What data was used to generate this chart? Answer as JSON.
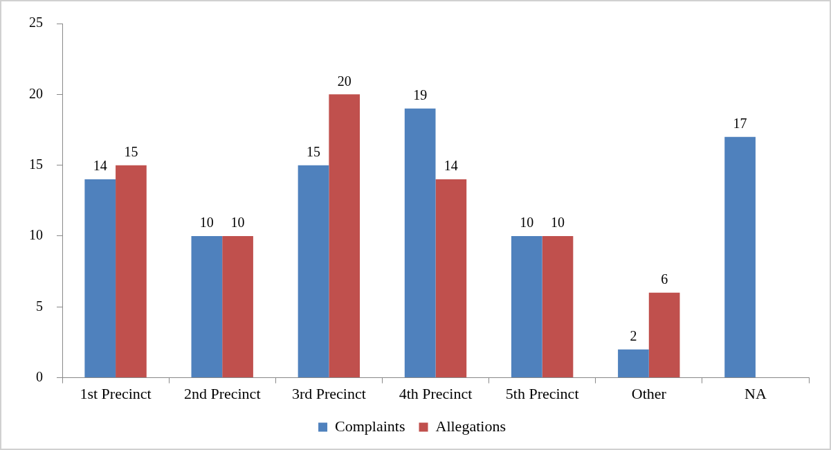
{
  "chart_data": {
    "type": "bar",
    "categories": [
      "1st Precinct",
      "2nd Precinct",
      "3rd Precinct",
      "4th Precinct",
      "5th Precinct",
      "Other",
      "NA"
    ],
    "series": [
      {
        "name": "Complaints",
        "color": "#4f81bd",
        "values": [
          14,
          10,
          15,
          19,
          10,
          2,
          17
        ]
      },
      {
        "name": "Allegations",
        "color": "#c0504d",
        "values": [
          15,
          10,
          20,
          14,
          10,
          6,
          null
        ]
      }
    ],
    "ylim": [
      0,
      25
    ],
    "yticks": [
      0,
      5,
      10,
      15,
      20,
      25
    ],
    "grid": false,
    "legend": "bottom",
    "data_labels": true
  }
}
